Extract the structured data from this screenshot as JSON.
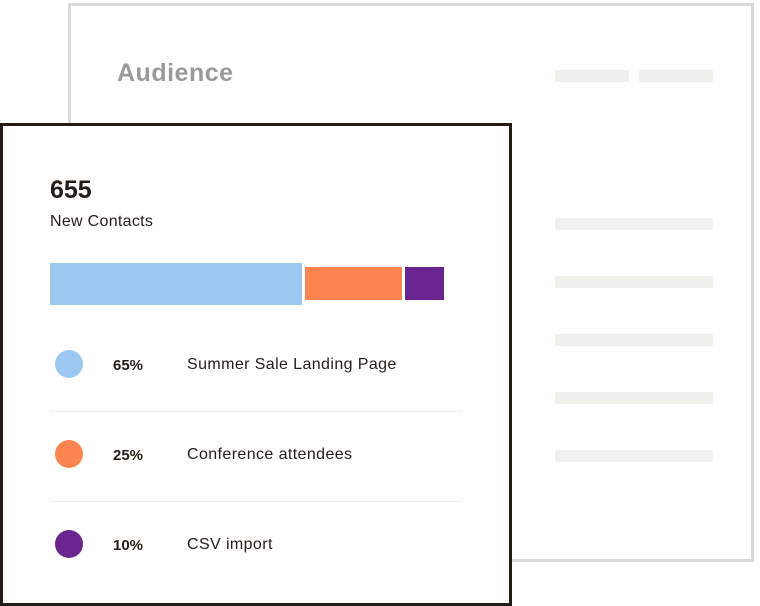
{
  "audience_panel": {
    "title": "Audience"
  },
  "contacts_card": {
    "count": "655",
    "count_label": "New Contacts",
    "segments": [
      {
        "percent": "65%",
        "value": 65,
        "label": "Summer Sale Landing Page",
        "color": "#9bc7f0"
      },
      {
        "percent": "25%",
        "value": 25,
        "label": "Conference attendees",
        "color": "#fc8450"
      },
      {
        "percent": "10%",
        "value": 10,
        "label": "CSV import",
        "color": "#6b2590"
      }
    ]
  }
}
